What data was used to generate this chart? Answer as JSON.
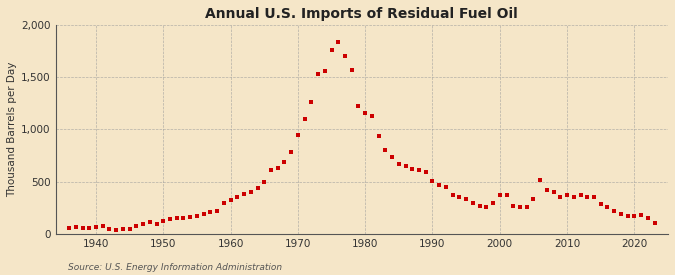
{
  "title": "Annual U.S. Imports of Residual Fuel Oil",
  "ylabel": "Thousand Barrels per Day",
  "source": "Source: U.S. Energy Information Administration",
  "background_color": "#f5e6c8",
  "plot_bg_color": "#f5e6c8",
  "line_color": "#cc0000",
  "marker": "s",
  "marker_size": 3.2,
  "ylim": [
    0,
    2000
  ],
  "yticks": [
    0,
    500,
    1000,
    1500,
    2000
  ],
  "xlim": [
    1934,
    2025
  ],
  "xticks": [
    1940,
    1950,
    1960,
    1970,
    1980,
    1990,
    2000,
    2010,
    2020
  ],
  "years": [
    1936,
    1937,
    1938,
    1939,
    1940,
    1941,
    1942,
    1943,
    1944,
    1945,
    1946,
    1947,
    1948,
    1949,
    1950,
    1951,
    1952,
    1953,
    1954,
    1955,
    1956,
    1957,
    1958,
    1959,
    1960,
    1961,
    1962,
    1963,
    1964,
    1965,
    1966,
    1967,
    1968,
    1969,
    1970,
    1971,
    1972,
    1973,
    1974,
    1975,
    1976,
    1977,
    1978,
    1979,
    1980,
    1981,
    1982,
    1983,
    1984,
    1985,
    1986,
    1987,
    1988,
    1989,
    1990,
    1991,
    1992,
    1993,
    1994,
    1995,
    1996,
    1997,
    1998,
    1999,
    2000,
    2001,
    2002,
    2003,
    2004,
    2005,
    2006,
    2007,
    2008,
    2009,
    2010,
    2011,
    2012,
    2013,
    2014,
    2015,
    2016,
    2017,
    2018,
    2019,
    2020,
    2021,
    2022,
    2023
  ],
  "values": [
    60,
    70,
    55,
    60,
    65,
    75,
    45,
    40,
    48,
    52,
    80,
    95,
    110,
    95,
    125,
    140,
    150,
    155,
    160,
    175,
    195,
    210,
    220,
    300,
    320,
    350,
    380,
    400,
    440,
    500,
    610,
    630,
    690,
    780,
    950,
    1100,
    1260,
    1530,
    1560,
    1760,
    1840,
    1700,
    1570,
    1220,
    1160,
    1130,
    940,
    800,
    740,
    670,
    650,
    620,
    610,
    590,
    505,
    465,
    445,
    370,
    350,
    335,
    300,
    270,
    260,
    295,
    370,
    375,
    270,
    260,
    255,
    330,
    520,
    425,
    400,
    350,
    375,
    350,
    370,
    350,
    350,
    285,
    258,
    220,
    190,
    170,
    172,
    180,
    155,
    100
  ]
}
